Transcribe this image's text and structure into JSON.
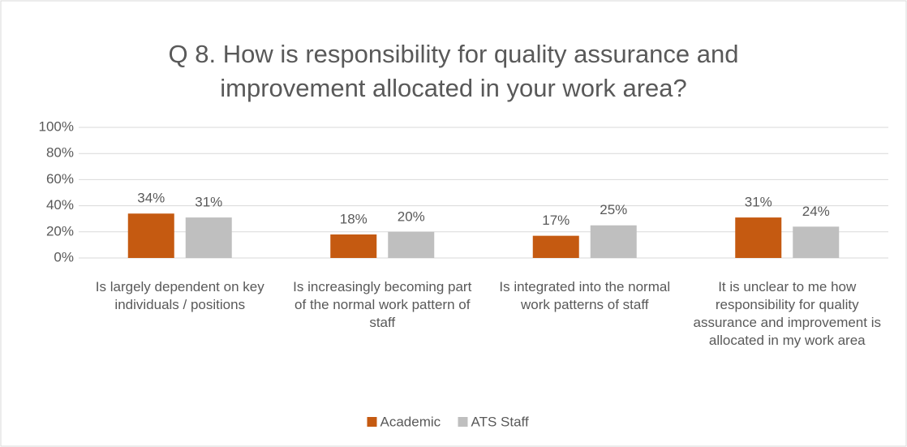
{
  "chart_data": {
    "type": "bar",
    "title": "Q 8. How is responsibility for quality assurance and improvement allocated in your work area?",
    "categories": [
      "Is largely dependent on key individuals / positions",
      "Is increasingly becoming part of the normal work pattern of staff",
      "Is integrated into the normal work patterns of staff",
      "It is unclear to me how responsibility for quality assurance and improvement is allocated in my work area"
    ],
    "series": [
      {
        "name": "Academic",
        "color": "#c55a11",
        "values": [
          34,
          18,
          17,
          31
        ],
        "value_labels": [
          "34%",
          "18%",
          "17%",
          "31%"
        ]
      },
      {
        "name": "ATS Staff",
        "color": "#bfbfbf",
        "values": [
          31,
          20,
          25,
          24
        ],
        "value_labels": [
          "31%",
          "20%",
          "25%",
          "24%"
        ]
      }
    ],
    "ylim": [
      0,
      100
    ],
    "yticks": [
      {
        "value": 0,
        "label": "0%"
      },
      {
        "value": 20,
        "label": "20%"
      },
      {
        "value": 40,
        "label": "40%"
      },
      {
        "value": 60,
        "label": "60%"
      },
      {
        "value": 80,
        "label": "80%"
      },
      {
        "value": 100,
        "label": "100%"
      }
    ],
    "grid": true,
    "legend": "bottom"
  }
}
